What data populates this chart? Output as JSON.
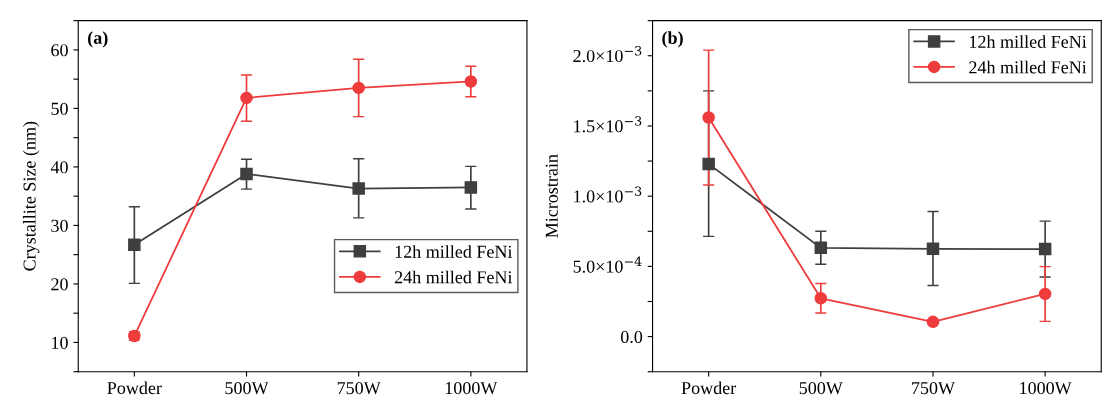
{
  "chart_data": [
    {
      "type": "line",
      "annotations": [
        "(a)"
      ],
      "ylabel": "Crystallite Size (nm)",
      "categories": [
        "Powder",
        "500W",
        "750W",
        "1000W"
      ],
      "ylim": [
        5,
        65
      ],
      "yticks": [
        {
          "value": 5,
          "label": null
        },
        10,
        {
          "value": 15,
          "label": null
        },
        20,
        {
          "value": 25,
          "label": null
        },
        30,
        {
          "value": 35,
          "label": null
        },
        40,
        {
          "value": 45,
          "label": null
        },
        50,
        {
          "value": 55,
          "label": null
        },
        60,
        {
          "value": 65,
          "label": null
        }
      ],
      "legend": "lower right",
      "grid": false,
      "series": [
        {
          "name": "12h milled FeNi",
          "color": "#3f3f3f",
          "marker": "square",
          "values": [
            26.7,
            38.8,
            36.3,
            36.5
          ],
          "errors": [
            [
              20.1,
              33.2
            ],
            [
              36.2,
              41.3
            ],
            [
              31.3,
              41.4
            ],
            [
              32.8,
              40.1
            ]
          ]
        },
        {
          "name": "24h milled FeNi",
          "color": "#ee3b3b",
          "marker": "circle",
          "values": [
            11.1,
            51.8,
            53.5,
            54.6
          ],
          "errors": [
            [
              10.4,
              11.8
            ],
            [
              47.8,
              55.7
            ],
            [
              48.6,
              58.4
            ],
            [
              52.0,
              57.2
            ]
          ]
        }
      ]
    },
    {
      "type": "line",
      "annotations": [
        "(b)"
      ],
      "ylabel": "Microstrain",
      "categories": [
        "Powder",
        "500W",
        "750W",
        "1000W"
      ],
      "ylim": [
        -0.00025,
        0.00225
      ],
      "yticks": [
        {
          "value": -0.00025,
          "label": null
        },
        {
          "value": 0,
          "label": "0.0"
        },
        {
          "value": 0.00025,
          "label": null
        },
        {
          "value": 0.0005,
          "label": "5.0×10$^{−4}$"
        },
        {
          "value": 0.00075,
          "label": null
        },
        {
          "value": 0.001,
          "label": "1.0×10$^{−3}$"
        },
        {
          "value": 0.00125,
          "label": null
        },
        {
          "value": 0.0015,
          "label": "1.5×10$^{−3}$"
        },
        {
          "value": 0.00175,
          "label": null
        },
        {
          "value": 0.002,
          "label": "2.0×10$^{−3}$"
        },
        {
          "value": 0.00225,
          "label": null
        }
      ],
      "legend": "top right",
      "grid": false,
      "series": [
        {
          "name": "12h milled FeNi",
          "color": "#3f3f3f",
          "marker": "square",
          "values": [
            0.00123,
            0.000632,
            0.000625,
            0.000623
          ],
          "errors": [
            [
              0.000714,
              0.00175
            ],
            [
              0.000515,
              0.00075
            ],
            [
              0.000364,
              0.000891
            ],
            [
              0.000424,
              0.000822
            ]
          ]
        },
        {
          "name": "24h milled FeNi",
          "color": "#ee3b3b",
          "marker": "circle",
          "values": [
            0.00156,
            0.000273,
            0.000105,
            0.000304
          ],
          "errors": [
            [
              0.00108,
              0.00204
            ],
            [
              0.000168,
              0.000378
            ],
            [
              9e-05,
              0.00012
            ],
            [
              0.000108,
              0.000498
            ]
          ]
        }
      ]
    }
  ]
}
